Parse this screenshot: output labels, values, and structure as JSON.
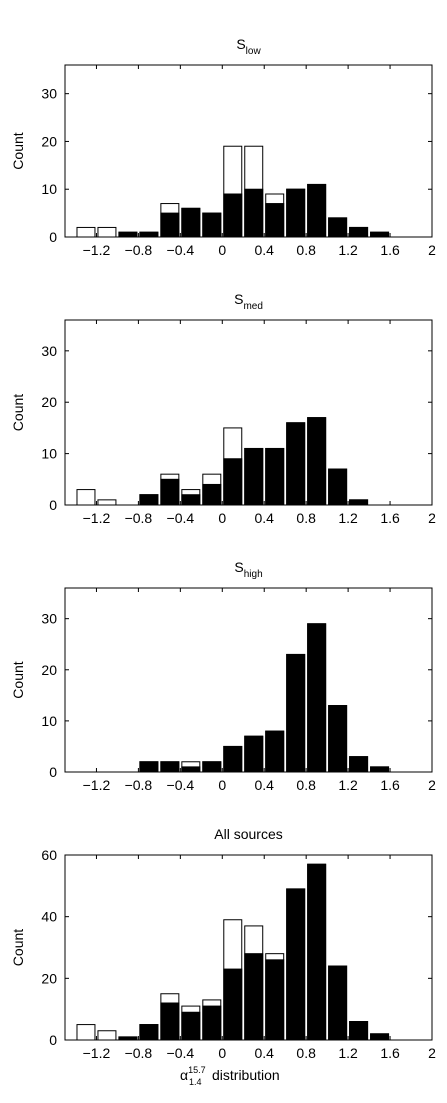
{
  "chart_data": [
    {
      "type": "bar",
      "title_main": "S",
      "title_sub": "low",
      "ylabel": "Count",
      "xlabel": "",
      "xlim": [
        -1.5,
        2
      ],
      "ylim": [
        0,
        36
      ],
      "xticks": [
        -1.2,
        -0.8,
        -0.4,
        0,
        0.4,
        0.8,
        1.2,
        1.6,
        2
      ],
      "xtick_labels": [
        "−1.2",
        "−0.8",
        "−0.4",
        "0",
        "0.4",
        "0.8",
        "1.2",
        "1.6",
        "2"
      ],
      "yticks": [
        0,
        10,
        20,
        30
      ],
      "ytick_labels": [
        "0",
        "10",
        "20",
        "30"
      ],
      "bin_width": 0.2,
      "bin_centers": [
        -1.3,
        -1.1,
        -0.9,
        -0.7,
        -0.5,
        -0.3,
        -0.1,
        0.1,
        0.3,
        0.5,
        0.7,
        0.9,
        1.1,
        1.3,
        1.5,
        1.7
      ],
      "series": [
        {
          "style": "filled",
          "values": [
            0,
            0,
            1,
            1,
            5,
            6,
            5,
            9,
            10,
            7,
            10,
            11,
            4,
            2,
            1,
            0
          ]
        },
        {
          "style": "outline",
          "values": [
            2,
            2,
            1,
            1,
            7,
            6,
            5,
            19,
            19,
            9,
            10,
            11,
            4,
            2,
            1,
            0
          ]
        }
      ]
    },
    {
      "type": "bar",
      "title_main": "S",
      "title_sub": "med",
      "ylabel": "Count",
      "xlabel": "",
      "xlim": [
        -1.5,
        2
      ],
      "ylim": [
        0,
        36
      ],
      "xticks": [
        -1.2,
        -0.8,
        -0.4,
        0,
        0.4,
        0.8,
        1.2,
        1.6,
        2
      ],
      "xtick_labels": [
        "−1.2",
        "−0.8",
        "−0.4",
        "0",
        "0.4",
        "0.8",
        "1.2",
        "1.6",
        "2"
      ],
      "yticks": [
        0,
        10,
        20,
        30
      ],
      "ytick_labels": [
        "0",
        "10",
        "20",
        "30"
      ],
      "bin_width": 0.2,
      "bin_centers": [
        -1.3,
        -1.1,
        -0.9,
        -0.7,
        -0.5,
        -0.3,
        -0.1,
        0.1,
        0.3,
        0.5,
        0.7,
        0.9,
        1.1,
        1.3,
        1.5,
        1.7
      ],
      "series": [
        {
          "style": "filled",
          "values": [
            0,
            0,
            0,
            2,
            5,
            2,
            4,
            9,
            11,
            11,
            16,
            17,
            7,
            1,
            0,
            0
          ]
        },
        {
          "style": "outline",
          "values": [
            3,
            1,
            0,
            2,
            6,
            3,
            6,
            15,
            11,
            11,
            16,
            17,
            7,
            1,
            0,
            0
          ]
        }
      ]
    },
    {
      "type": "bar",
      "title_main": "S",
      "title_sub": "high",
      "ylabel": "Count",
      "xlabel": "",
      "xlim": [
        -1.5,
        2
      ],
      "ylim": [
        0,
        36
      ],
      "xticks": [
        -1.2,
        -0.8,
        -0.4,
        0,
        0.4,
        0.8,
        1.2,
        1.6,
        2
      ],
      "xtick_labels": [
        "−1.2",
        "−0.8",
        "−0.4",
        "0",
        "0.4",
        "0.8",
        "1.2",
        "1.6",
        "2"
      ],
      "yticks": [
        0,
        10,
        20,
        30
      ],
      "ytick_labels": [
        "0",
        "10",
        "20",
        "30"
      ],
      "bin_width": 0.2,
      "bin_centers": [
        -1.3,
        -1.1,
        -0.9,
        -0.7,
        -0.5,
        -0.3,
        -0.1,
        0.1,
        0.3,
        0.5,
        0.7,
        0.9,
        1.1,
        1.3,
        1.5,
        1.7
      ],
      "series": [
        {
          "style": "filled",
          "values": [
            0,
            0,
            0,
            2,
            2,
            1,
            2,
            5,
            7,
            8,
            23,
            29,
            13,
            3,
            1,
            0
          ]
        },
        {
          "style": "outline",
          "values": [
            0,
            0,
            0,
            2,
            2,
            2,
            2,
            5,
            7,
            8,
            23,
            29,
            13,
            3,
            1,
            0
          ]
        }
      ]
    },
    {
      "type": "bar",
      "title_main": "All sources",
      "title_sub": "",
      "ylabel": "Count",
      "xlabel_main": "α",
      "xlabel_sup": "15.7",
      "xlabel_sub": "1.4",
      "xlabel_rest": "distribution",
      "xlim": [
        -1.5,
        2
      ],
      "ylim": [
        0,
        60
      ],
      "xticks": [
        -1.2,
        -0.8,
        -0.4,
        0,
        0.4,
        0.8,
        1.2,
        1.6,
        2
      ],
      "xtick_labels": [
        "−1.2",
        "−0.8",
        "−0.4",
        "0",
        "0.4",
        "0.8",
        "1.2",
        "1.6",
        "2"
      ],
      "yticks": [
        0,
        20,
        40,
        60
      ],
      "ytick_labels": [
        "0",
        "20",
        "40",
        "60"
      ],
      "bin_width": 0.2,
      "bin_centers": [
        -1.3,
        -1.1,
        -0.9,
        -0.7,
        -0.5,
        -0.3,
        -0.1,
        0.1,
        0.3,
        0.5,
        0.7,
        0.9,
        1.1,
        1.3,
        1.5,
        1.7
      ],
      "series": [
        {
          "style": "filled",
          "values": [
            0,
            0,
            1,
            5,
            12,
            9,
            11,
            23,
            28,
            26,
            49,
            57,
            24,
            6,
            2,
            0
          ]
        },
        {
          "style": "outline",
          "values": [
            5,
            3,
            1,
            5,
            15,
            11,
            13,
            39,
            37,
            28,
            49,
            57,
            24,
            6,
            2,
            0
          ]
        }
      ]
    }
  ]
}
